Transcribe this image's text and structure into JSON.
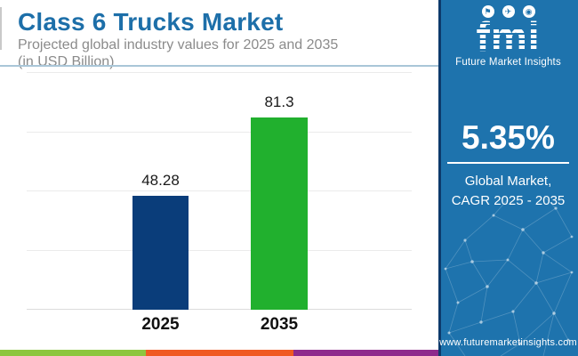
{
  "header": {
    "title": "Class 6 Trucks Market",
    "subtitle_line1": "Projected global industry values for 2025 and 2035",
    "subtitle_line2": "(in USD Billion)"
  },
  "chart_data": {
    "type": "bar",
    "title": "Class 6 Trucks Market",
    "subtitle": "Projected global industry values for 2025 and 2035 (in USD Billion)",
    "categories": [
      "2025",
      "2035"
    ],
    "values": [
      48.28,
      81.3
    ],
    "value_labels": [
      "48.28",
      "81.3"
    ],
    "bar_colors": [
      "#0a3d7a",
      "#21b02e"
    ],
    "xlabel": "",
    "ylabel": "",
    "ylim": [
      0,
      100
    ],
    "gridline_values": [
      0,
      25,
      50,
      75,
      100
    ],
    "grid": true,
    "legend": "none"
  },
  "sidebar": {
    "logo": {
      "text": "fmi",
      "tagline": "Future Market Insights",
      "icons": [
        "flag-icon",
        "plane-icon",
        "globe-icon"
      ],
      "icon_glyphs": [
        "⚑",
        "✈",
        "◉"
      ]
    },
    "stat": {
      "value": "5.35%",
      "label_line1": "Global Market,",
      "label_line2": "CAGR 2025 - 2035"
    },
    "website": "www.futuremarketinsights.com"
  },
  "colors": {
    "title_blue": "#1d6fa9",
    "subtitle_gray": "#8b8b8b",
    "header_rule": "#a9c6d8",
    "sidebar_blue": "#1e73ad",
    "sidebar_edge_navy": "#0d3a6b",
    "bar_2025_blue": "#0a3d7a",
    "bar_2035_green": "#21b02e"
  },
  "footer_stripes": [
    "#8dc63f",
    "#f05a22",
    "#8e2a8c"
  ]
}
